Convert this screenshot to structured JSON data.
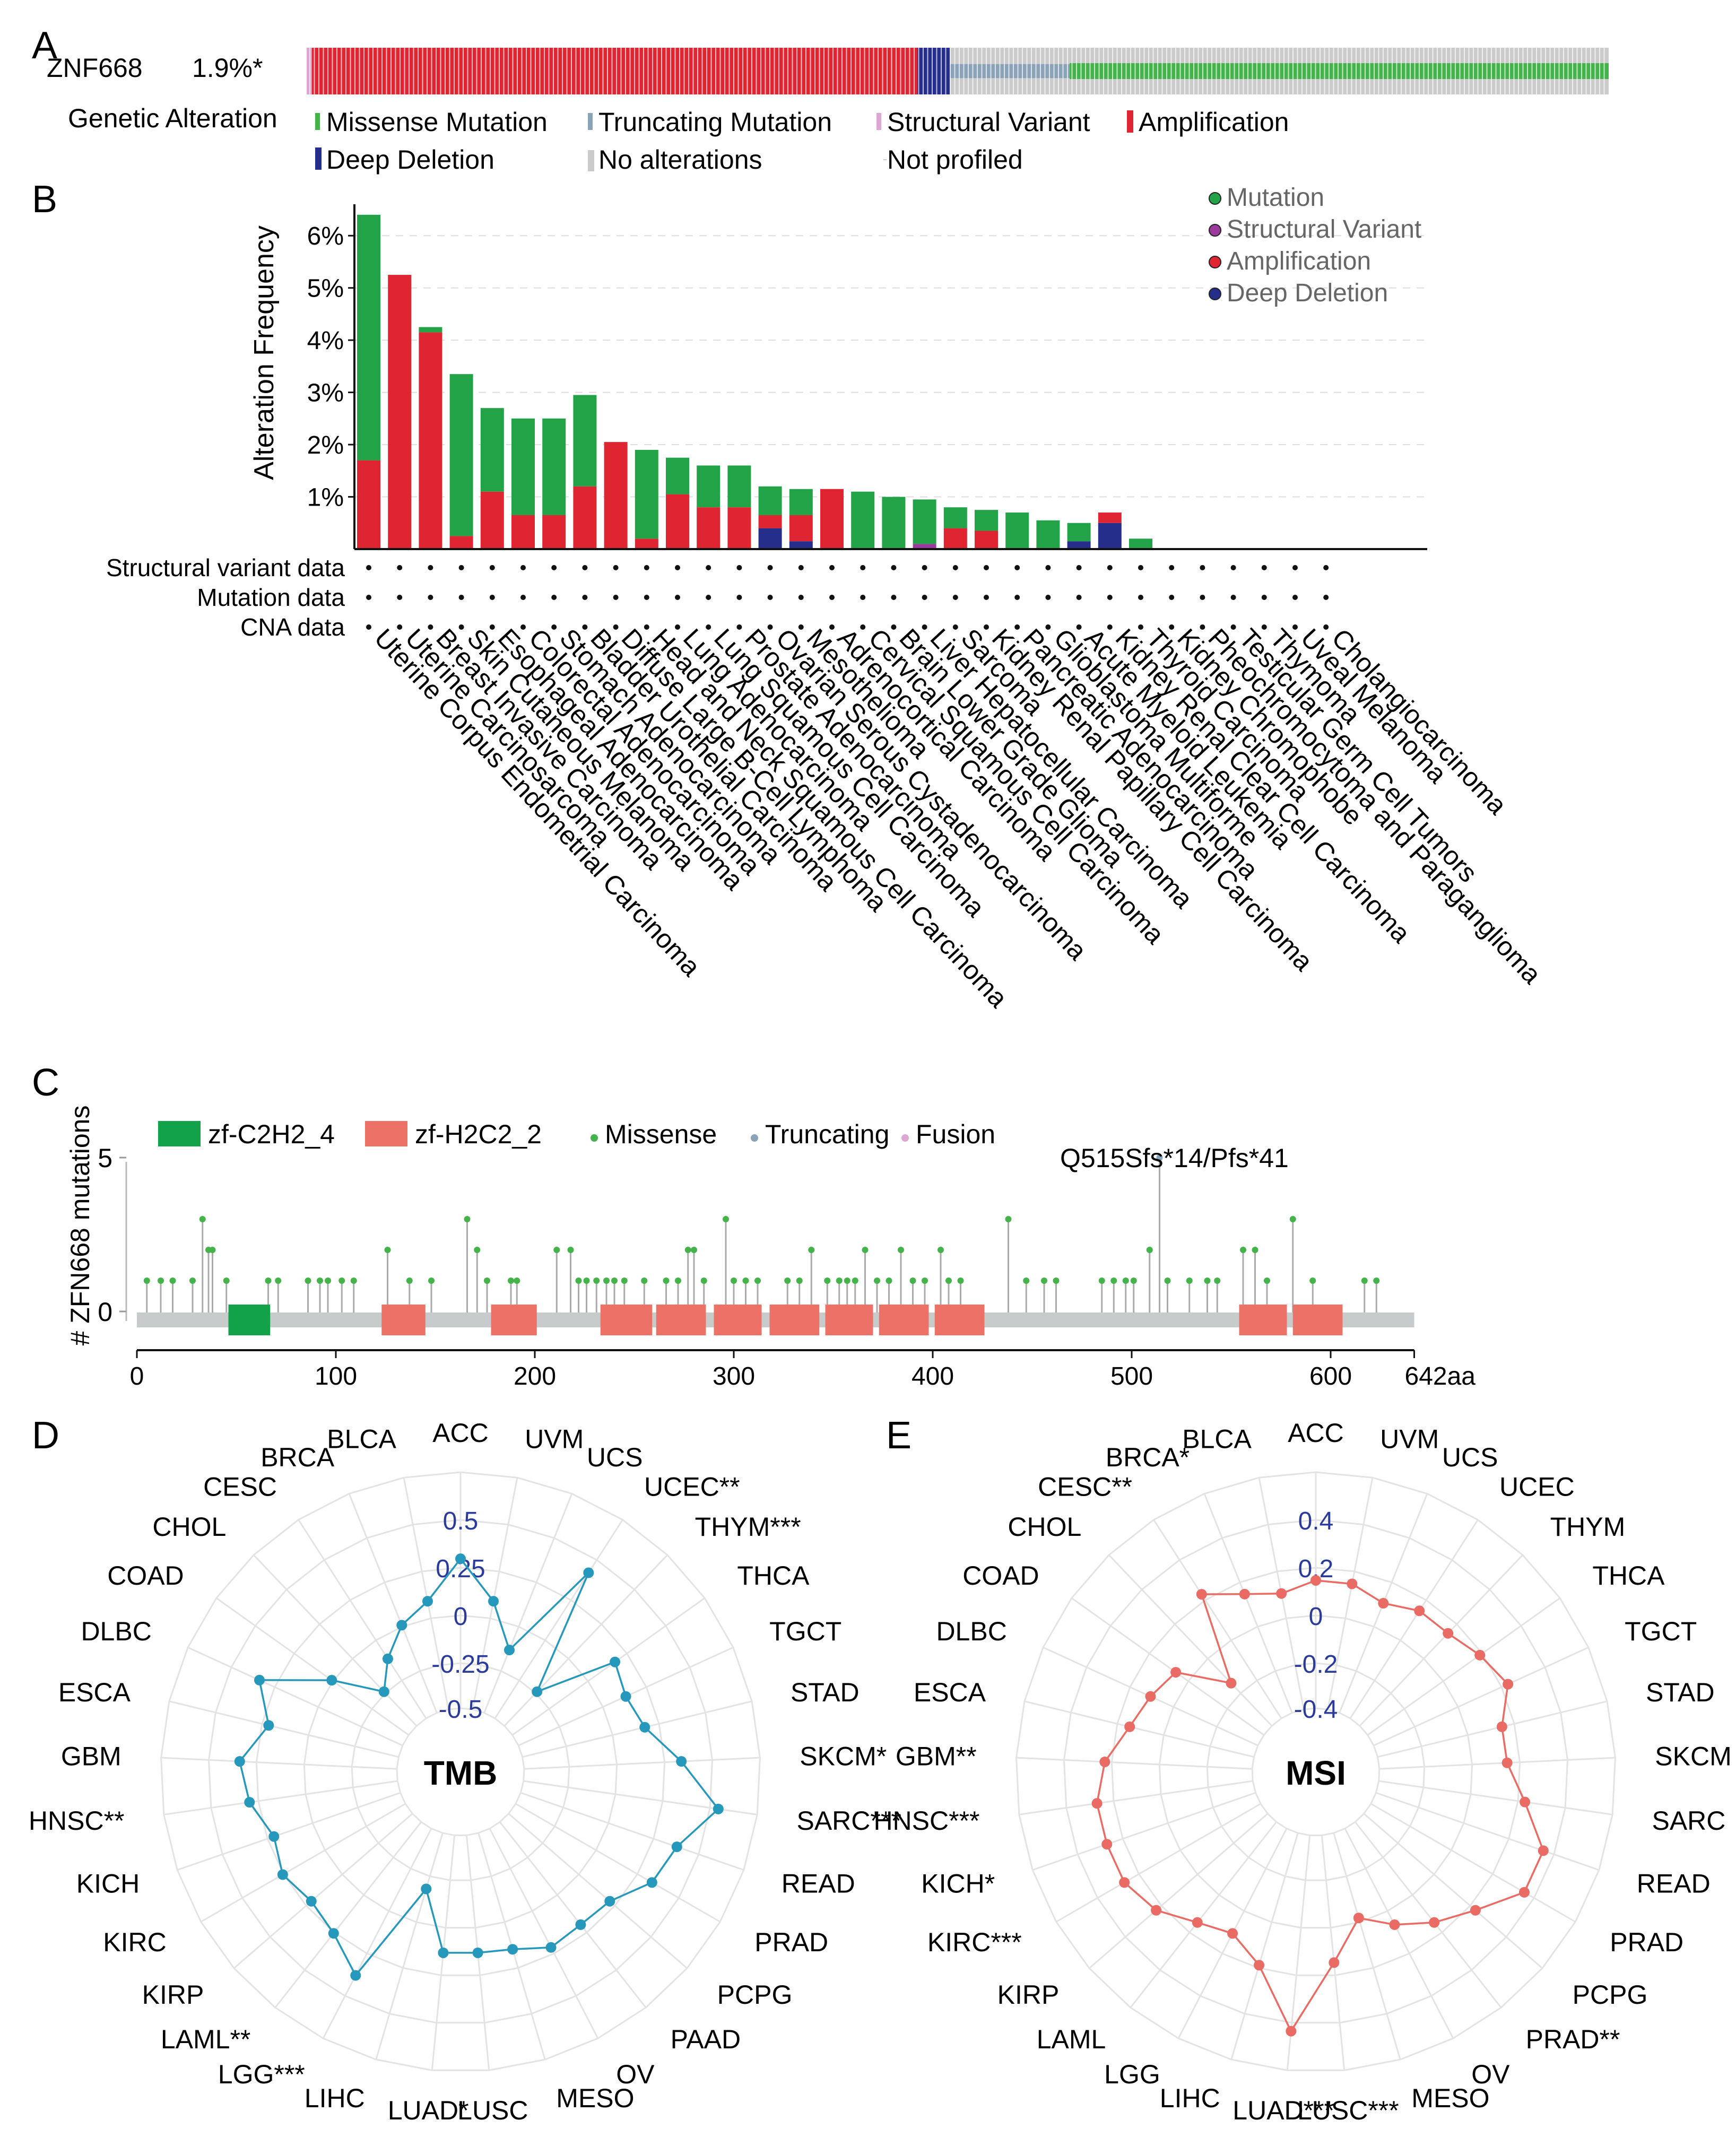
{
  "colors": {
    "missense": "#43b34a",
    "truncating": "#8aa3b8",
    "structural": "#dca7d3",
    "amplification": "#e02532",
    "deep_deletion": "#252e8a",
    "no_alteration": "#cbcbcb",
    "mutation_bar": "#23a348",
    "domain_c2h2": "#12a24a",
    "domain_h2c2": "#ec7166",
    "tmb_line": "#2598bb",
    "msi_line": "#ea6b64",
    "axis_blue": "#2a3b9c"
  },
  "panel_labels": [
    "A",
    "B",
    "C",
    "D",
    "E"
  ],
  "panel_a": {
    "gene": "ZNF668",
    "percent": "1.9%*",
    "legend_title": "Genetic Alteration",
    "legend": [
      "Missense Mutation",
      "Truncating Mutation",
      "Structural Variant",
      "Amplification",
      "Deep Deletion",
      "No alterations",
      "Not profiled"
    ],
    "track_fractions": {
      "structural": 0.004,
      "amplification": 0.465,
      "deep_deletion": 0.025,
      "truncating": 0.092,
      "missense": 0.414
    }
  },
  "chart_data": [
    {
      "type": "bar",
      "title": "",
      "ylabel": "Alteration Frequency",
      "ylim": [
        0,
        6.5
      ],
      "yticks": [
        "1%",
        "2%",
        "3%",
        "4%",
        "5%",
        "6%"
      ],
      "legend": [
        "Mutation",
        "Structural Variant",
        "Amplification",
        "Deep Deletion"
      ],
      "row_labels": [
        "Structural variant data",
        "Mutation data",
        "CNA data"
      ],
      "categories": [
        "Uterine Corpus Endometrial Carcinoma",
        "Uterine Carcinosarcoma",
        "Breast Invasive Carcinoma",
        "Skin Cutaneous Melanoma",
        "Esophageal Adenocarcinoma",
        "Colorectal Adenocarcinoma",
        "Stomach Adenocarcinoma",
        "Bladder Urothelial Carcinoma",
        "Diffuse Large B-Cell Lymphoma",
        "Head and Neck Squamous Cell Carcinoma",
        "Lung Adenocarcinoma",
        "Lung Squamous Cell Carcinoma",
        "Prostate Adenocarcinoma",
        "Ovarian Serous Cystadenocarcinoma",
        "Mesothelioma",
        "Adrenocortical Carcinoma",
        "Cervical Squamous Cell Carcinoma",
        "Brain Lower Grade Glioma",
        "Liver Hepatocellular Carcinoma",
        "Sarcoma",
        "Kidney Renal Papillary Cell Carcinoma",
        "Pancreatic Adenocarcinoma",
        "Glioblastoma Multiforme",
        "Acute Myeloid Leukemia",
        "Kidney Renal Clear Cell Carcinoma",
        "Thyroid Carcinoma",
        "Kidney Chromophobe",
        "Pheochromocytoma and Paraganglioma",
        "Testicular Germ Cell Tumors",
        "Thymoma",
        "Uveal Melanoma",
        "Cholangiocarcinoma"
      ],
      "series": [
        {
          "name": "Deep Deletion",
          "values": [
            0,
            0,
            0,
            0,
            0,
            0,
            0,
            0,
            0,
            0,
            0,
            0,
            0,
            0.4,
            0.15,
            0,
            0,
            0,
            0,
            0,
            0,
            0,
            0,
            0.15,
            0.5,
            0,
            0,
            0,
            0,
            0,
            0,
            0
          ]
        },
        {
          "name": "Amplification",
          "values": [
            1.7,
            5.25,
            4.15,
            0.25,
            1.1,
            0.65,
            0.65,
            1.2,
            2.05,
            0.2,
            1.05,
            0.8,
            0.8,
            0.25,
            0.5,
            1.15,
            0,
            0,
            0,
            0.4,
            0.35,
            0,
            0,
            0,
            0.2,
            0,
            0,
            0,
            0,
            0,
            0,
            0
          ]
        },
        {
          "name": "Structural Variant",
          "values": [
            0,
            0,
            0,
            0,
            0,
            0,
            0,
            0,
            0,
            0,
            0,
            0,
            0,
            0,
            0,
            0,
            0,
            0,
            0.1,
            0,
            0,
            0,
            0,
            0,
            0,
            0,
            0,
            0,
            0,
            0,
            0,
            0
          ]
        },
        {
          "name": "Mutation",
          "values": [
            4.7,
            0,
            0.1,
            3.1,
            1.6,
            1.85,
            1.85,
            1.75,
            0,
            1.7,
            0.7,
            0.8,
            0.8,
            0.55,
            0.5,
            0,
            1.1,
            1.0,
            0.85,
            0.4,
            0.4,
            0.7,
            0.55,
            0.35,
            0,
            0.2,
            0,
            0,
            0,
            0,
            0,
            0
          ]
        }
      ]
    },
    {
      "type": "scatter",
      "title": "",
      "ylabel": "# ZFN668 mutations",
      "yticks": [
        0,
        5
      ],
      "xticks": [
        0,
        100,
        200,
        300,
        400,
        500,
        600
      ],
      "xmax_label": "642aa",
      "xlim": [
        0,
        642
      ],
      "legend": [
        "zf-C2H2_4",
        "zf-H2C2_2",
        "Missense",
        "Truncating",
        "Fusion"
      ],
      "annotation": "Q515Sfs*14/Pfs*41",
      "domains": [
        {
          "name": "zf-C2H2_4",
          "start": 46,
          "end": 67
        },
        {
          "name": "zf-H2C2_2",
          "start": 123,
          "end": 145
        },
        {
          "name": "zf-H2C2_2",
          "start": 178,
          "end": 201
        },
        {
          "name": "zf-H2C2_2",
          "start": 233,
          "end": 259
        },
        {
          "name": "zf-H2C2_2",
          "start": 261,
          "end": 286
        },
        {
          "name": "zf-H2C2_2",
          "start": 290,
          "end": 314
        },
        {
          "name": "zf-H2C2_2",
          "start": 318,
          "end": 343
        },
        {
          "name": "zf-H2C2_2",
          "start": 346,
          "end": 370
        },
        {
          "name": "zf-H2C2_2",
          "start": 373,
          "end": 398
        },
        {
          "name": "zf-H2C2_2",
          "start": 401,
          "end": 426
        },
        {
          "name": "zf-H2C2_2",
          "start": 554,
          "end": 578
        },
        {
          "name": "zf-H2C2_2",
          "start": 581,
          "end": 606
        }
      ],
      "mutations": [
        {
          "pos": 5,
          "count": 1,
          "kind": "missense"
        },
        {
          "pos": 12,
          "count": 1,
          "kind": "missense"
        },
        {
          "pos": 18,
          "count": 1,
          "kind": "missense"
        },
        {
          "pos": 28,
          "count": 1,
          "kind": "missense"
        },
        {
          "pos": 33,
          "count": 3,
          "kind": "missense"
        },
        {
          "pos": 36,
          "count": 2,
          "kind": "missense"
        },
        {
          "pos": 38,
          "count": 2,
          "kind": "missense"
        },
        {
          "pos": 45,
          "count": 1,
          "kind": "missense"
        },
        {
          "pos": 66,
          "count": 1,
          "kind": "missense"
        },
        {
          "pos": 71,
          "count": 1,
          "kind": "missense"
        },
        {
          "pos": 86,
          "count": 1,
          "kind": "missense"
        },
        {
          "pos": 92,
          "count": 1,
          "kind": "missense"
        },
        {
          "pos": 96,
          "count": 1,
          "kind": "missense"
        },
        {
          "pos": 103,
          "count": 1,
          "kind": "missense"
        },
        {
          "pos": 109,
          "count": 1,
          "kind": "missense"
        },
        {
          "pos": 126,
          "count": 2,
          "kind": "missense"
        },
        {
          "pos": 137,
          "count": 1,
          "kind": "missense"
        },
        {
          "pos": 148,
          "count": 1,
          "kind": "missense"
        },
        {
          "pos": 166,
          "count": 3,
          "kind": "missense"
        },
        {
          "pos": 171,
          "count": 2,
          "kind": "missense"
        },
        {
          "pos": 176,
          "count": 1,
          "kind": "missense"
        },
        {
          "pos": 188,
          "count": 1,
          "kind": "missense"
        },
        {
          "pos": 191,
          "count": 1,
          "kind": "missense"
        },
        {
          "pos": 211,
          "count": 2,
          "kind": "missense"
        },
        {
          "pos": 218,
          "count": 2,
          "kind": "missense"
        },
        {
          "pos": 222,
          "count": 1,
          "kind": "missense"
        },
        {
          "pos": 226,
          "count": 1,
          "kind": "missense"
        },
        {
          "pos": 231,
          "count": 1,
          "kind": "missense"
        },
        {
          "pos": 236,
          "count": 1,
          "kind": "missense"
        },
        {
          "pos": 240,
          "count": 1,
          "kind": "missense"
        },
        {
          "pos": 245,
          "count": 1,
          "kind": "missense"
        },
        {
          "pos": 255,
          "count": 1,
          "kind": "missense"
        },
        {
          "pos": 266,
          "count": 1,
          "kind": "missense"
        },
        {
          "pos": 272,
          "count": 1,
          "kind": "missense"
        },
        {
          "pos": 277,
          "count": 2,
          "kind": "missense"
        },
        {
          "pos": 280,
          "count": 2,
          "kind": "missense"
        },
        {
          "pos": 285,
          "count": 1,
          "kind": "missense"
        },
        {
          "pos": 296,
          "count": 3,
          "kind": "missense"
        },
        {
          "pos": 300,
          "count": 1,
          "kind": "missense"
        },
        {
          "pos": 306,
          "count": 1,
          "kind": "missense"
        },
        {
          "pos": 312,
          "count": 1,
          "kind": "missense"
        },
        {
          "pos": 327,
          "count": 1,
          "kind": "missense"
        },
        {
          "pos": 333,
          "count": 1,
          "kind": "missense"
        },
        {
          "pos": 339,
          "count": 2,
          "kind": "missense"
        },
        {
          "pos": 347,
          "count": 1,
          "kind": "missense"
        },
        {
          "pos": 353,
          "count": 1,
          "kind": "missense"
        },
        {
          "pos": 357,
          "count": 1,
          "kind": "missense"
        },
        {
          "pos": 361,
          "count": 1,
          "kind": "missense"
        },
        {
          "pos": 366,
          "count": 2,
          "kind": "missense"
        },
        {
          "pos": 372,
          "count": 1,
          "kind": "missense"
        },
        {
          "pos": 378,
          "count": 1,
          "kind": "missense"
        },
        {
          "pos": 384,
          "count": 2,
          "kind": "missense"
        },
        {
          "pos": 390,
          "count": 1,
          "kind": "missense"
        },
        {
          "pos": 396,
          "count": 1,
          "kind": "missense"
        },
        {
          "pos": 404,
          "count": 2,
          "kind": "missense"
        },
        {
          "pos": 408,
          "count": 1,
          "kind": "missense"
        },
        {
          "pos": 414,
          "count": 1,
          "kind": "missense"
        },
        {
          "pos": 438,
          "count": 3,
          "kind": "missense"
        },
        {
          "pos": 447,
          "count": 1,
          "kind": "missense"
        },
        {
          "pos": 456,
          "count": 1,
          "kind": "missense"
        },
        {
          "pos": 462,
          "count": 1,
          "kind": "missense"
        },
        {
          "pos": 485,
          "count": 1,
          "kind": "missense"
        },
        {
          "pos": 491,
          "count": 1,
          "kind": "missense"
        },
        {
          "pos": 497,
          "count": 1,
          "kind": "missense"
        },
        {
          "pos": 501,
          "count": 1,
          "kind": "missense"
        },
        {
          "pos": 509,
          "count": 2,
          "kind": "missense"
        },
        {
          "pos": 514,
          "count": 5,
          "kind": "truncating"
        },
        {
          "pos": 518,
          "count": 1,
          "kind": "missense"
        },
        {
          "pos": 529,
          "count": 1,
          "kind": "missense"
        },
        {
          "pos": 538,
          "count": 1,
          "kind": "missense"
        },
        {
          "pos": 543,
          "count": 1,
          "kind": "missense"
        },
        {
          "pos": 556,
          "count": 2,
          "kind": "missense"
        },
        {
          "pos": 562,
          "count": 2,
          "kind": "missense"
        },
        {
          "pos": 568,
          "count": 1,
          "kind": "missense"
        },
        {
          "pos": 581,
          "count": 3,
          "kind": "missense"
        },
        {
          "pos": 591,
          "count": 1,
          "kind": "missense"
        },
        {
          "pos": 617,
          "count": 1,
          "kind": "missense"
        },
        {
          "pos": 623,
          "count": 1,
          "kind": "missense"
        }
      ]
    },
    {
      "type": "radar",
      "title": "TMB",
      "rticks": [
        "0.5",
        "0.25",
        "0",
        "-0.25",
        "-0.5"
      ],
      "rlim": [
        -0.75,
        0.75
      ],
      "categories": [
        "ACC",
        "UVM",
        "UCS",
        "UCEC**",
        "THYM***",
        "THCA",
        "TGCT",
        "STAD",
        "SKCM*",
        "SARC***",
        "READ",
        "PRAD",
        "PCPG",
        "PAAD",
        "OV",
        "MESO",
        "LUSC",
        "LUAD*",
        "LIHC",
        "LGG***",
        "LAML**",
        "KIRP",
        "KIRC",
        "KICH",
        "HNSC**",
        "GBM",
        "ESCA",
        "DLBC",
        "COAD",
        "CHOL",
        "CESC",
        "BRCA",
        "BLCA"
      ],
      "values": [
        0.2,
        -0.05,
        -0.32,
        0.35,
        -0.45,
        0.05,
        0.0,
        0.05,
        0.25,
        0.5,
        0.3,
        0.25,
        0.1,
        0.08,
        0.1,
        0.02,
        0.0,
        0.0,
        -0.38,
        0.3,
        0.15,
        0.1,
        0.15,
        0.1,
        0.2,
        0.25,
        0.1,
        0.25,
        -0.15,
        -0.45,
        -0.3,
        -0.15,
        -0.05
      ]
    },
    {
      "type": "radar",
      "title": "MSI",
      "rticks": [
        "0.4",
        "0.2",
        "0",
        "-0.2",
        "-0.4"
      ],
      "rlim": [
        -0.6,
        0.6
      ],
      "categories": [
        "ACC",
        "UVM",
        "UCS",
        "UCEC",
        "THYM",
        "THCA",
        "TGCT",
        "STAD",
        "SKCM",
        "SARC",
        "READ",
        "PRAD",
        "PCPG",
        "PRAD**",
        "OV",
        "MESO",
        "LUSC***",
        "LUAD***",
        "LIHC",
        "LGG",
        "LAML",
        "KIRP",
        "KIRC***",
        "KICH*",
        "HNSC***",
        "GBM**",
        "ESCA",
        "DLBC",
        "COAD",
        "CHOL",
        "CESC**",
        "BRCA*",
        "BLCA"
      ],
      "values": [
        0.05,
        0.05,
        0.0,
        0.05,
        0.05,
        0.1,
        0.15,
        0.05,
        0.05,
        0.15,
        0.3,
        0.3,
        0.15,
        0.05,
        -0.05,
        -0.15,
        0.05,
        0.4,
        0.1,
        0.0,
        0.05,
        0.15,
        0.2,
        0.2,
        0.2,
        0.15,
        0.05,
        0.0,
        -0.05,
        -0.3,
        0.15,
        0.05,
        0.0
      ]
    }
  ]
}
